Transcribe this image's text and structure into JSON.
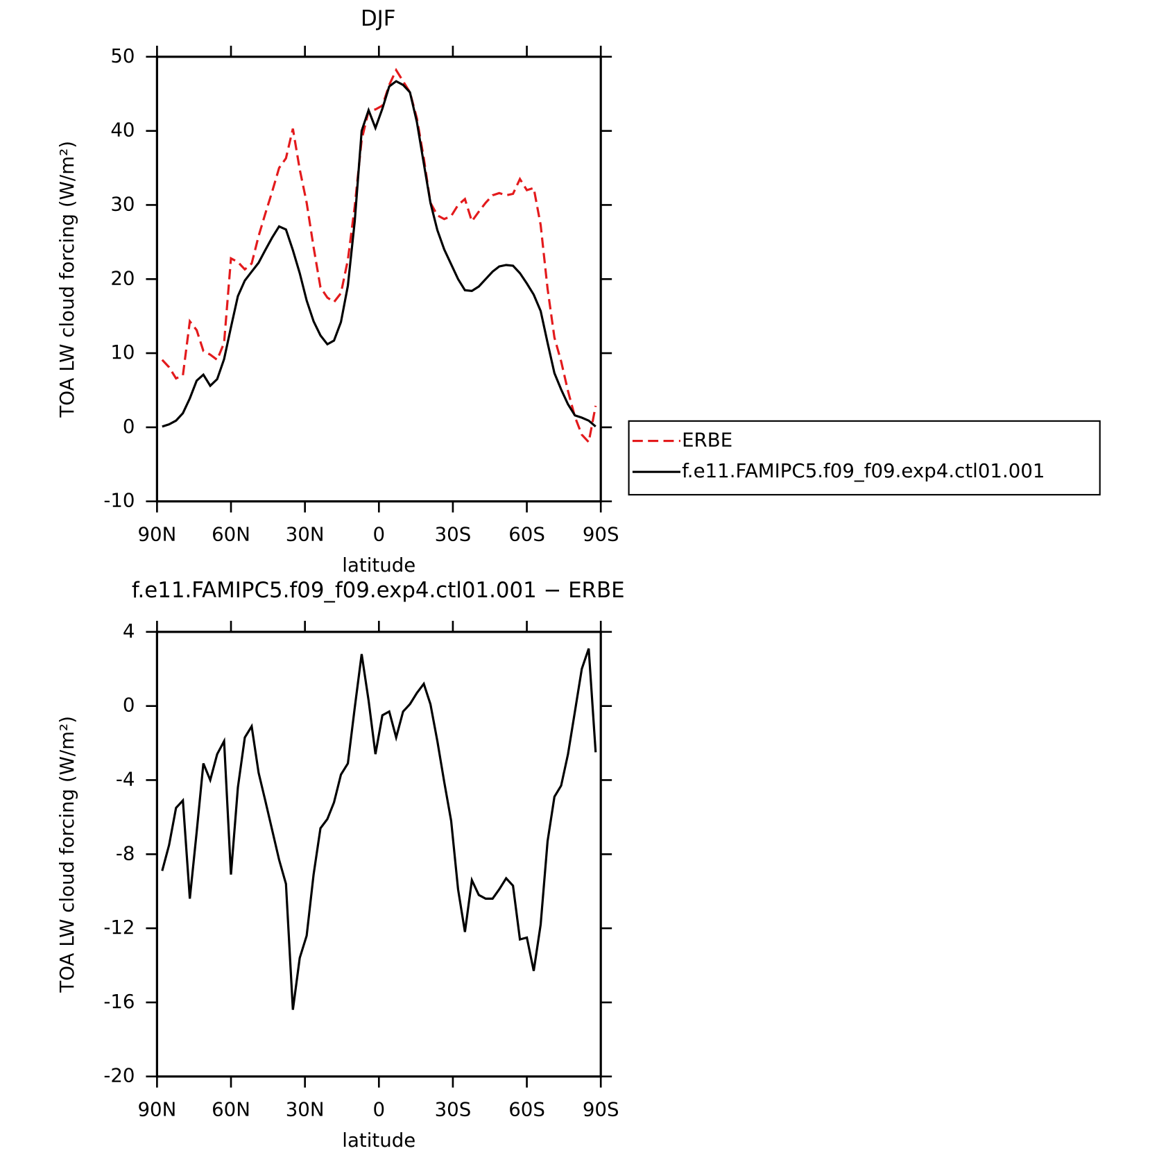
{
  "chart_data": [
    {
      "type": "line",
      "title": "DJF",
      "x_label": "latitude",
      "y_label": "TOA LW cloud forcing (W/m²)",
      "x": [
        87.9,
        85.1,
        82.3,
        79.5,
        76.7,
        73.9,
        71.2,
        68.4,
        65.6,
        62.8,
        60.0,
        57.2,
        54.4,
        51.6,
        48.8,
        46.1,
        43.3,
        40.5,
        37.7,
        34.9,
        32.1,
        29.3,
        26.5,
        23.7,
        20.9,
        18.2,
        15.4,
        12.6,
        9.8,
        7.0,
        4.2,
        1.4,
        -1.4,
        -4.2,
        -7.0,
        -9.8,
        -12.6,
        -15.4,
        -18.2,
        -20.9,
        -23.7,
        -26.5,
        -29.3,
        -32.1,
        -34.9,
        -37.7,
        -40.5,
        -43.3,
        -46.1,
        -48.8,
        -51.6,
        -54.4,
        -57.2,
        -60.0,
        -62.8,
        -65.6,
        -68.4,
        -71.2,
        -73.9,
        -76.7,
        -79.5,
        -82.3,
        -85.1,
        -87.9
      ],
      "xlim": [
        90,
        -90
      ],
      "xticks": [
        {
          "value": 90,
          "label": "90N"
        },
        {
          "value": 60,
          "label": "60N"
        },
        {
          "value": 30,
          "label": "30N"
        },
        0,
        {
          "value": -30,
          "label": "30S"
        },
        {
          "value": -60,
          "label": "60S"
        },
        {
          "value": -90,
          "label": "90S"
        }
      ],
      "ylim": [
        -10,
        50
      ],
      "yticks": [
        -10,
        0,
        10,
        20,
        30,
        40,
        50
      ],
      "legend": "right",
      "series": [
        {
          "name": "ERBE",
          "color": "#e31a1c",
          "line_style": "dashed",
          "values": [
            9.1,
            8.1,
            6.6,
            7.0,
            14.3,
            13.1,
            10.3,
            9.8,
            9.1,
            11.4,
            22.8,
            22.3,
            21.3,
            22.1,
            25.8,
            28.8,
            31.8,
            35.0,
            36.3,
            40.3,
            34.8,
            30.3,
            24.3,
            18.9,
            17.5,
            16.9,
            18.1,
            22.6,
            29.8,
            38.8,
            42.7,
            42.9,
            43.4,
            46.2,
            48.2,
            46.7,
            45.2,
            41.7,
            36.3,
            30.3,
            28.6,
            28.1,
            28.5,
            30.0,
            30.8,
            27.8,
            29.1,
            30.3,
            31.3,
            31.6,
            31.3,
            31.5,
            33.5,
            32.0,
            32.3,
            27.3,
            18.7,
            12.1,
            8.9,
            4.9,
            1.4,
            -1.0,
            -2.0,
            2.9
          ]
        },
        {
          "name": "f.e11.FAMIPC5.f09_f09.exp4.ctl01.001",
          "color": "#000000",
          "line_style": "solid",
          "values": [
            0.1,
            0.4,
            0.9,
            1.9,
            3.9,
            6.3,
            7.1,
            5.6,
            6.5,
            9.2,
            13.5,
            17.7,
            19.8,
            21.0,
            22.2,
            23.9,
            25.6,
            27.1,
            26.7,
            23.9,
            20.8,
            17.1,
            14.3,
            12.4,
            11.2,
            11.7,
            14.2,
            19.1,
            27.8,
            40.0,
            42.8,
            40.4,
            43.0,
            46.0,
            46.7,
            46.2,
            45.2,
            41.2,
            35.6,
            30.3,
            26.6,
            24.0,
            22.0,
            20.0,
            18.5,
            18.4,
            19.0,
            20.0,
            21.0,
            21.7,
            21.9,
            21.8,
            20.8,
            19.4,
            17.9,
            15.7,
            11.4,
            7.3,
            5.1,
            3.1,
            1.6,
            1.3,
            0.9,
            0.1
          ]
        }
      ]
    },
    {
      "type": "line",
      "title": "f.e11.FAMIPC5.f09_f09.exp4.ctl01.001 − ERBE",
      "x_label": "latitude",
      "y_label": "TOA LW cloud forcing (W/m²)",
      "x": [
        87.9,
        85.1,
        82.3,
        79.5,
        76.7,
        73.9,
        71.2,
        68.4,
        65.6,
        62.8,
        60.0,
        57.2,
        54.4,
        51.6,
        48.8,
        46.1,
        43.3,
        40.5,
        37.7,
        34.9,
        32.1,
        29.3,
        26.5,
        23.7,
        20.9,
        18.2,
        15.4,
        12.6,
        9.8,
        7.0,
        4.2,
        1.4,
        -1.4,
        -4.2,
        -7.0,
        -9.8,
        -12.6,
        -15.4,
        -18.2,
        -20.9,
        -23.7,
        -26.5,
        -29.3,
        -32.1,
        -34.9,
        -37.7,
        -40.5,
        -43.3,
        -46.1,
        -48.8,
        -51.6,
        -54.4,
        -57.2,
        -60.0,
        -62.8,
        -65.6,
        -68.4,
        -71.2,
        -73.9,
        -76.7,
        -79.5,
        -82.3,
        -85.1,
        -87.9
      ],
      "xlim": [
        90,
        -90
      ],
      "xticks": [
        {
          "value": 90,
          "label": "90N"
        },
        {
          "value": 60,
          "label": "60N"
        },
        {
          "value": 30,
          "label": "30N"
        },
        0,
        {
          "value": -30,
          "label": "30S"
        },
        {
          "value": -60,
          "label": "60S"
        },
        {
          "value": -90,
          "label": "90S"
        }
      ],
      "ylim": [
        -20,
        4
      ],
      "yticks": [
        -20,
        -16,
        -12,
        -8,
        -4,
        0,
        4
      ],
      "series": [
        {
          "color": "#000000",
          "line_style": "solid",
          "values": [
            -8.9,
            -7.5,
            -5.5,
            -5.1,
            -10.4,
            -6.8,
            -3.1,
            -4.0,
            -2.6,
            -1.9,
            -9.1,
            -4.4,
            -1.7,
            -1.1,
            -3.6,
            -5.1,
            -6.7,
            -8.3,
            -9.6,
            -16.4,
            -13.6,
            -12.4,
            -9.1,
            -6.6,
            -6.1,
            -5.2,
            -3.7,
            -3.1,
            -0.1,
            2.8,
            0.3,
            -2.6,
            -0.5,
            -0.3,
            -1.7,
            -0.3,
            0.1,
            0.7,
            1.2,
            0.1,
            -1.9,
            -4.1,
            -6.2,
            -9.9,
            -12.2,
            -9.4,
            -10.2,
            -10.4,
            -10.4,
            -9.9,
            -9.3,
            -9.7,
            -12.6,
            -12.5,
            -14.3,
            -11.8,
            -7.3,
            -4.9,
            -4.3,
            -2.6,
            -0.3,
            2.0,
            3.1,
            -2.5
          ]
        }
      ]
    }
  ]
}
